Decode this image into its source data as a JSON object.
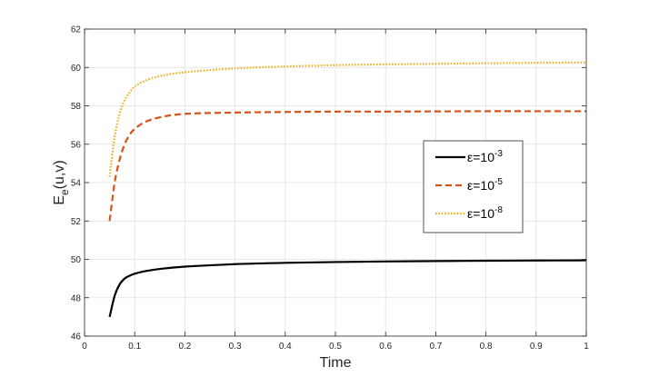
{
  "chart_data": {
    "type": "line",
    "xlabel": "Time",
    "ylabel": {
      "main": "E",
      "sub": "e",
      "rest": "(u,v)"
    },
    "xlim": [
      0,
      1
    ],
    "ylim": [
      46,
      62
    ],
    "xticks": [
      0,
      0.1,
      0.2,
      0.3,
      0.4,
      0.5,
      0.6,
      0.7,
      0.8,
      0.9,
      1
    ],
    "xtick_labels": [
      "0",
      "0.1",
      "0.2",
      "0.3",
      "0.4",
      "0.5",
      "0.6",
      "0.7",
      "0.8",
      "0.9",
      "1"
    ],
    "yticks": [
      46,
      48,
      50,
      52,
      54,
      56,
      58,
      60,
      62
    ],
    "ytick_labels": [
      "46",
      "48",
      "50",
      "52",
      "54",
      "56",
      "58",
      "60",
      "62"
    ],
    "grid": true,
    "legend_position": "right",
    "series": [
      {
        "name": "ε=10⁻³",
        "label": {
          "base": "ε=10",
          "exp": "-3"
        },
        "color": "#000000",
        "style": "solid",
        "x": [
          0.05,
          0.06,
          0.07,
          0.08,
          0.09,
          0.1,
          0.12,
          0.15,
          0.2,
          0.3,
          0.4,
          0.5,
          0.6,
          0.7,
          0.8,
          0.9,
          1.0
        ],
        "y": [
          47.0,
          48.1,
          48.7,
          49.0,
          49.15,
          49.25,
          49.38,
          49.5,
          49.62,
          49.75,
          49.82,
          49.86,
          49.89,
          49.91,
          49.93,
          49.94,
          49.95
        ]
      },
      {
        "name": "ε=10⁻⁵",
        "label": {
          "base": "ε=10",
          "exp": "-5"
        },
        "color": "#d95319",
        "style": "dashed",
        "x": [
          0.05,
          0.06,
          0.07,
          0.08,
          0.09,
          0.1,
          0.12,
          0.15,
          0.2,
          0.3,
          0.4,
          0.5,
          0.6,
          0.7,
          0.8,
          0.9,
          1.0
        ],
        "y": [
          52.0,
          54.0,
          55.2,
          56.0,
          56.5,
          56.8,
          57.15,
          57.4,
          57.58,
          57.65,
          57.68,
          57.7,
          57.7,
          57.71,
          57.72,
          57.72,
          57.72
        ]
      },
      {
        "name": "ε=10⁻⁸",
        "label": {
          "base": "ε=10",
          "exp": "-8"
        },
        "color": "#edb120",
        "style": "dotted",
        "x": [
          0.05,
          0.06,
          0.07,
          0.08,
          0.09,
          0.1,
          0.12,
          0.15,
          0.2,
          0.3,
          0.4,
          0.5,
          0.6,
          0.7,
          0.8,
          0.9,
          1.0
        ],
        "y": [
          54.3,
          56.4,
          57.6,
          58.3,
          58.7,
          59.0,
          59.3,
          59.55,
          59.75,
          59.95,
          60.05,
          60.12,
          60.16,
          60.19,
          60.22,
          60.24,
          60.26
        ]
      }
    ]
  }
}
